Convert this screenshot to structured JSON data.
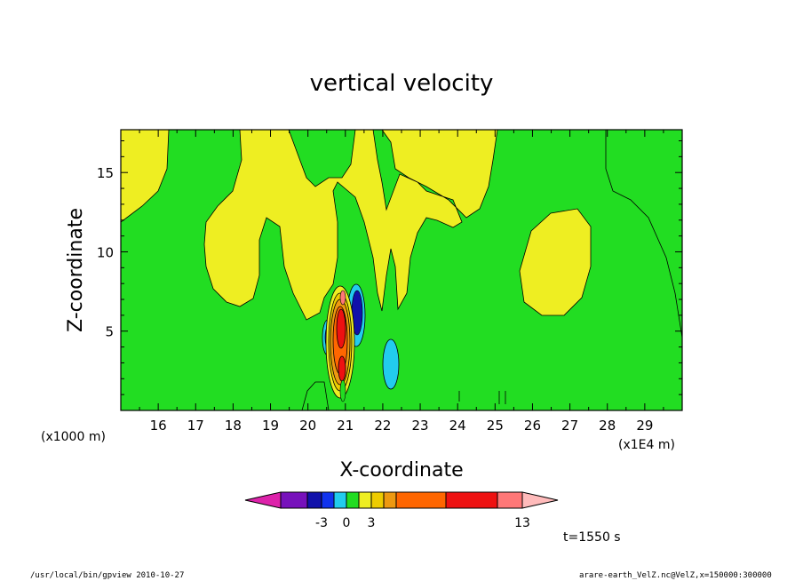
{
  "chart_data": {
    "type": "heatmap",
    "title": "vertical velocity",
    "xlabel": "X-coordinate",
    "ylabel": "Z-coordinate",
    "x_unit": "(x1E4 m)",
    "y_unit": "(x1000 m)",
    "xlim": [
      15.0,
      30.0
    ],
    "ylim": [
      0.0,
      17.7
    ],
    "x_ticks": [
      16,
      17,
      18,
      19,
      20,
      21,
      22,
      23,
      24,
      25,
      26,
      27,
      28,
      29
    ],
    "y_ticks": [
      5,
      10,
      15
    ],
    "colorbar": {
      "colors": [
        "#dd22aa",
        "#7711bb",
        "#1111aa",
        "#1133ee",
        "#22ccee",
        "#22dd22",
        "#eeee22",
        "#eecc00",
        "#ee9911",
        "#ff6600",
        "#ee1111",
        "#ff7777",
        "#ffbbbb"
      ],
      "labels": [
        {
          "value": "-3",
          "index": 3
        },
        {
          "value": "0",
          "index": 5
        },
        {
          "value": "3",
          "index": 7
        },
        {
          "value": "13",
          "index": 12
        }
      ]
    },
    "regions": {
      "background": "green",
      "yellow_areas": "upper-left band, central columns, right oval near x=27, y=10",
      "updraft_core": {
        "x": 20.8,
        "y": 4.5,
        "max": 13
      },
      "downdraft_cores": [
        {
          "x": 21.4,
          "y": 6.0
        },
        {
          "x": 20.6,
          "y": 5.0
        },
        {
          "x": 22.3,
          "y": 3.5
        }
      ]
    }
  },
  "time_label": "t=1550 s",
  "footer": {
    "left": "/usr/local/bin/gpview  2010-10-27",
    "right": "arare-earth_VelZ.nc@VelZ,x=150000:300000"
  }
}
